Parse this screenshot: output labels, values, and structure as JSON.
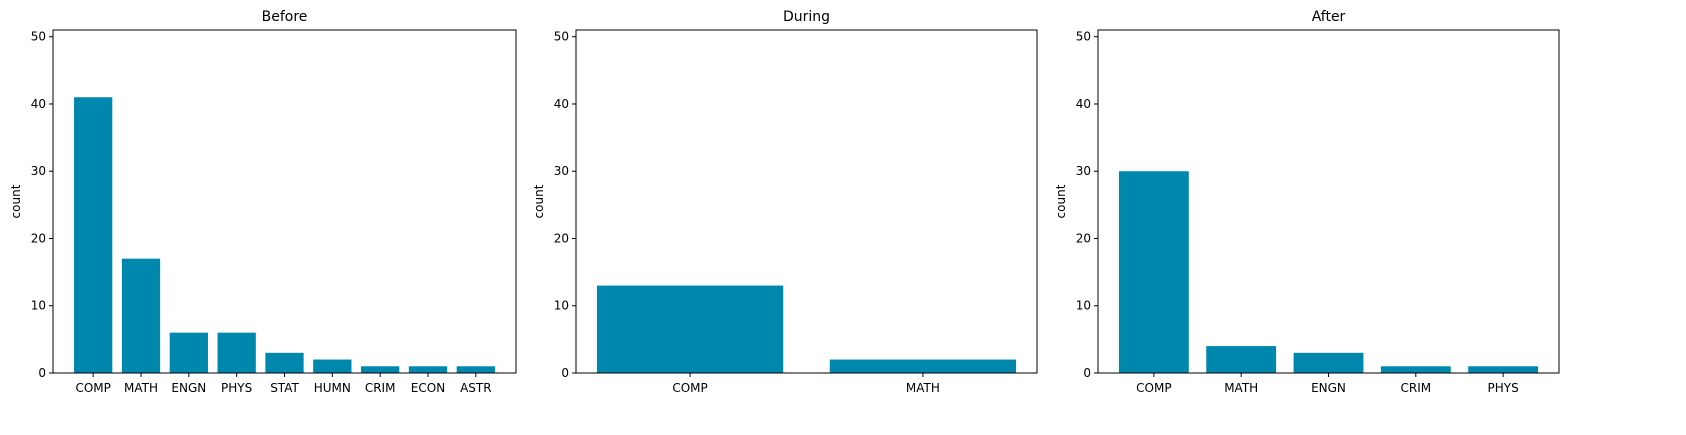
{
  "chart_data": [
    {
      "type": "bar",
      "title": "Before",
      "xlabel": "",
      "ylabel": "count",
      "ylim": [
        0,
        51
      ],
      "yticks": [
        0,
        10,
        20,
        30,
        40,
        50
      ],
      "grid": false,
      "categories": [
        "COMP",
        "MATH",
        "ENGN",
        "PHYS",
        "STAT",
        "HUMN",
        "CRIM",
        "ECON",
        "ASTR"
      ],
      "values": [
        41,
        17,
        6,
        6,
        3,
        2,
        1,
        1,
        1
      ]
    },
    {
      "type": "bar",
      "title": "During",
      "xlabel": "",
      "ylabel": "count",
      "ylim": [
        0,
        51
      ],
      "yticks": [
        0,
        10,
        20,
        30,
        40,
        50
      ],
      "grid": false,
      "categories": [
        "COMP",
        "MATH"
      ],
      "values": [
        13,
        2
      ]
    },
    {
      "type": "bar",
      "title": "After",
      "xlabel": "",
      "ylabel": "count",
      "ylim": [
        0,
        51
      ],
      "yticks": [
        0,
        10,
        20,
        30,
        40,
        50
      ],
      "grid": false,
      "categories": [
        "COMP",
        "MATH",
        "ENGN",
        "CRIM",
        "PHYS"
      ],
      "values": [
        30,
        4,
        3,
        1,
        1
      ]
    }
  ],
  "colors": {
    "bar": "#0087ae",
    "axis": "#000000"
  }
}
